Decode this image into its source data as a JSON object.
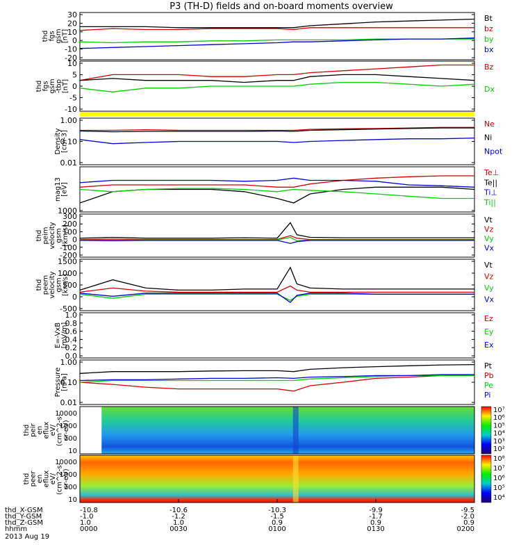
{
  "title": "P3 (TH-D) fields and on-board moments overview",
  "time_axis": {
    "date": "2013 Aug 19",
    "row_labels": [
      "thd_X-GSM",
      "thd_Y-GSM",
      "thd_Z-GSM",
      "hhmm"
    ],
    "columns": [
      [
        "-10.8",
        "-1.0",
        "1.0",
        "0000"
      ],
      [
        "-10.6",
        "-1.2",
        "1.0",
        "0030"
      ],
      [
        "-10.3",
        "-1.5",
        "0.9",
        "0100"
      ],
      [
        "-9.9",
        "-1.7",
        "0.9",
        "0130"
      ],
      [
        "-9.5",
        "-2.0",
        "0.9",
        "0200"
      ]
    ]
  },
  "chart_data": [
    {
      "type": "line",
      "ylabel": [
        "thd",
        "fgs",
        "gsm",
        "[nT]"
      ],
      "yticks": [
        "30",
        "20",
        "10",
        "0",
        "-10",
        "-20"
      ],
      "ylim": [
        -20,
        30
      ],
      "x": [
        0,
        10,
        20,
        30,
        40,
        50,
        60,
        65,
        70,
        80,
        90,
        100,
        110,
        120
      ],
      "series": [
        {
          "name": "Bt",
          "color": "#000000",
          "values": [
            15,
            15,
            15,
            14,
            14,
            14,
            14,
            14,
            16,
            18,
            20,
            21,
            22,
            23
          ]
        },
        {
          "name": "bz",
          "color": "#cc0000",
          "values": [
            11,
            13,
            12,
            12,
            13,
            13,
            13,
            12,
            14,
            14,
            14,
            14,
            14,
            14
          ]
        },
        {
          "name": "by",
          "color": "#00cc00",
          "values": [
            -1,
            -2,
            -1,
            -1,
            0,
            0,
            1,
            1,
            1,
            1,
            2,
            2,
            2,
            2
          ]
        },
        {
          "name": "bx",
          "color": "#0000cc",
          "values": [
            -8,
            -7,
            -6,
            -5,
            -4,
            -3,
            -2,
            -1,
            -1,
            0,
            1,
            2,
            2,
            3
          ]
        }
      ]
    },
    {
      "type": "line",
      "ylabel": [
        "thd",
        "fgs",
        "gsm",
        "-tbp",
        "[nT]"
      ],
      "yticks": [
        "10",
        "5",
        "0",
        "-5",
        "-10"
      ],
      "ylim": [
        -13,
        13
      ],
      "x": [
        0,
        10,
        20,
        30,
        40,
        50,
        60,
        65,
        70,
        80,
        90,
        100,
        110,
        120
      ],
      "series": [
        {
          "name": "Bz",
          "color": "#cc0000",
          "values": [
            3,
            6,
            6,
            6,
            5,
            5,
            6,
            6,
            7,
            8,
            9,
            10,
            11,
            11
          ]
        },
        {
          "name": "Dx",
          "color": "#00cc00",
          "values": [
            -1,
            -3,
            -1,
            -1,
            0,
            0,
            0,
            0,
            1,
            2,
            2,
            1,
            0,
            1
          ]
        },
        {
          "name": "",
          "color": "#000000",
          "values": [
            3,
            4,
            3,
            3,
            3,
            2,
            3,
            3,
            5,
            6,
            6,
            5,
            4,
            3
          ]
        }
      ]
    },
    {
      "type": "line",
      "log": true,
      "ylabel": [
        "Density",
        "[cm-3]"
      ],
      "yticks": [
        "1.00",
        "0.10",
        "0.01"
      ],
      "ylim": [
        0.01,
        1.0
      ],
      "x": [
        0,
        10,
        20,
        30,
        40,
        50,
        60,
        65,
        70,
        80,
        90,
        100,
        110,
        120
      ],
      "series": [
        {
          "name": "Ne",
          "color": "#cc0000",
          "values": [
            0.3,
            0.3,
            0.32,
            0.3,
            0.3,
            0.3,
            0.3,
            0.3,
            0.33,
            0.35,
            0.36,
            0.38,
            0.4,
            0.4
          ]
        },
        {
          "name": "Ni",
          "color": "#000000",
          "values": [
            0.28,
            0.26,
            0.27,
            0.27,
            0.27,
            0.27,
            0.28,
            0.27,
            0.3,
            0.32,
            0.34,
            0.36,
            0.38,
            0.38
          ]
        },
        {
          "name": "Npot",
          "color": "#0000cc",
          "values": [
            0.12,
            0.08,
            0.09,
            0.1,
            0.1,
            0.1,
            0.1,
            0.09,
            0.1,
            0.11,
            0.12,
            0.13,
            0.13,
            0.14
          ]
        }
      ]
    },
    {
      "type": "line",
      "ylabel": [
        "mag13",
        "[eV]"
      ],
      "yticks": [
        "1000"
      ],
      "ylim": [
        0,
        1
      ],
      "x": [
        0,
        10,
        20,
        30,
        40,
        50,
        60,
        65,
        70,
        80,
        90,
        100,
        110,
        120
      ],
      "series": [
        {
          "name": "Te⊥",
          "color": "#cc0000",
          "values": [
            0.55,
            0.6,
            0.6,
            0.6,
            0.6,
            0.6,
            0.55,
            0.55,
            0.62,
            0.7,
            0.75,
            0.78,
            0.8,
            0.8
          ]
        },
        {
          "name": "Te||",
          "color": "#000000",
          "values": [
            0.2,
            0.45,
            0.5,
            0.5,
            0.5,
            0.45,
            0.3,
            0.2,
            0.4,
            0.5,
            0.55,
            0.55,
            0.55,
            0.5
          ]
        },
        {
          "name": "Ti⊥",
          "color": "#0000cc",
          "values": [
            0.65,
            0.7,
            0.7,
            0.7,
            0.7,
            0.68,
            0.7,
            0.75,
            0.7,
            0.7,
            0.68,
            0.6,
            0.58,
            0.55
          ]
        },
        {
          "name": "Ti||",
          "color": "#00cc00",
          "values": [
            0.5,
            0.45,
            0.5,
            0.52,
            0.52,
            0.5,
            0.45,
            0.5,
            0.48,
            0.45,
            0.4,
            0.35,
            0.3,
            0.3
          ]
        }
      ]
    },
    {
      "type": "line",
      "ylabel": [
        "thd",
        "peim",
        "velocity",
        "gsm",
        "[km/s]"
      ],
      "yticks": [
        "300",
        "200",
        "100",
        "0",
        "-100",
        "-200"
      ],
      "ylim": [
        -200,
        300
      ],
      "x": [
        0,
        10,
        20,
        30,
        40,
        50,
        60,
        64,
        66,
        70,
        80,
        90,
        100,
        110,
        120
      ],
      "series": [
        {
          "name": "Vt",
          "color": "#000000",
          "values": [
            20,
            30,
            20,
            20,
            20,
            25,
            20,
            200,
            60,
            30,
            25,
            25,
            25,
            25,
            25
          ]
        },
        {
          "name": "Vz",
          "color": "#cc0000",
          "values": [
            5,
            10,
            5,
            5,
            5,
            5,
            5,
            50,
            20,
            5,
            5,
            5,
            5,
            5,
            5
          ]
        },
        {
          "name": "Vy",
          "color": "#00cc00",
          "values": [
            0,
            -5,
            0,
            0,
            0,
            0,
            0,
            30,
            -10,
            0,
            0,
            0,
            0,
            0,
            0
          ]
        },
        {
          "name": "Vx",
          "color": "#0000cc",
          "values": [
            -5,
            -10,
            -5,
            -5,
            -5,
            -5,
            -5,
            -40,
            -20,
            -5,
            -5,
            -5,
            -5,
            -5,
            -5
          ]
        }
      ]
    },
    {
      "type": "line",
      "ylabel": [
        "thd",
        "peem",
        "velocity",
        "gsm",
        "[km/s]"
      ],
      "yticks": [
        "1500",
        "1000",
        "500",
        "0",
        "-500"
      ],
      "ylim": [
        -900,
        1600
      ],
      "x": [
        0,
        10,
        20,
        30,
        40,
        50,
        60,
        64,
        66,
        70,
        80,
        90,
        100,
        110,
        120
      ],
      "series": [
        {
          "name": "Vt",
          "color": "#000000",
          "values": [
            100,
            600,
            200,
            100,
            100,
            150,
            150,
            1200,
            400,
            200,
            150,
            150,
            150,
            150,
            150
          ]
        },
        {
          "name": "Vz",
          "color": "#cc0000",
          "values": [
            0,
            200,
            50,
            0,
            0,
            0,
            0,
            300,
            100,
            0,
            0,
            0,
            0,
            0,
            0
          ]
        },
        {
          "name": "Vy",
          "color": "#00cc00",
          "values": [
            -100,
            -300,
            -100,
            -100,
            -100,
            -100,
            -100,
            -400,
            -200,
            -100,
            -100,
            -100,
            -100,
            -100,
            -100
          ]
        },
        {
          "name": "Vx",
          "color": "#0000cc",
          "values": [
            -50,
            -200,
            -50,
            -50,
            -50,
            -50,
            -50,
            -500,
            -150,
            -50,
            -50,
            -100,
            -100,
            -100,
            -100
          ]
        }
      ]
    },
    {
      "type": "line",
      "ylabel": [
        "E=-VxB",
        "[mV/m]"
      ],
      "yticks": [
        "1.0",
        "0.8",
        "0.6",
        "0.4",
        "0.2",
        "0.0"
      ],
      "ylim": [
        0,
        1
      ],
      "x": [],
      "series": [
        {
          "name": "Ez",
          "color": "#cc0000",
          "values": []
        },
        {
          "name": "Ey",
          "color": "#00cc00",
          "values": []
        },
        {
          "name": "Ex",
          "color": "#0000cc",
          "values": []
        }
      ]
    },
    {
      "type": "line",
      "log": true,
      "ylabel": [
        "Pressure",
        "[nPa]"
      ],
      "yticks": [
        "1.00",
        "0.10",
        "0.01"
      ],
      "ylim": [
        0.01,
        1.0
      ],
      "x": [
        0,
        10,
        20,
        30,
        40,
        50,
        60,
        65,
        70,
        80,
        90,
        100,
        110,
        120
      ],
      "series": [
        {
          "name": "Pt",
          "color": "#000000",
          "values": [
            0.25,
            0.3,
            0.3,
            0.3,
            0.32,
            0.33,
            0.33,
            0.3,
            0.38,
            0.45,
            0.5,
            0.55,
            0.6,
            0.62
          ]
        },
        {
          "name": "Pb",
          "color": "#cc0000",
          "values": [
            0.1,
            0.08,
            0.06,
            0.05,
            0.05,
            0.05,
            0.05,
            0.04,
            0.07,
            0.1,
            0.15,
            0.17,
            0.2,
            0.22
          ]
        },
        {
          "name": "Pe",
          "color": "#00cc00",
          "values": [
            0.1,
            0.12,
            0.12,
            0.12,
            0.12,
            0.12,
            0.12,
            0.12,
            0.14,
            0.16,
            0.18,
            0.2,
            0.2,
            0.2
          ]
        },
        {
          "name": "Pi",
          "color": "#0000cc",
          "values": [
            0.12,
            0.13,
            0.13,
            0.14,
            0.15,
            0.15,
            0.16,
            0.15,
            0.17,
            0.18,
            0.2,
            0.2,
            0.22,
            0.22
          ]
        }
      ]
    },
    {
      "type": "heatmap",
      "ylabel": [
        "thd",
        "peir",
        "en",
        "eflux",
        "eV/",
        "(cm^2-s-",
        "sr-eV)"
      ],
      "yticks": [
        "10000",
        "1000",
        "100",
        "10"
      ],
      "colorbar_ticks": [
        "10⁷",
        "10⁶",
        "10⁵",
        "10⁴",
        "10³",
        "10²"
      ]
    },
    {
      "type": "heatmap",
      "ylabel": [
        "thd",
        "peer",
        "en",
        "eflux",
        "eV/",
        "(cm^2-s-",
        "sr-eV)"
      ],
      "yticks": [
        "10000",
        "1000",
        "100",
        "10"
      ],
      "colorbar_ticks": [
        "10⁸",
        "10⁷",
        "10⁶",
        "10⁵",
        "10⁴"
      ]
    }
  ]
}
